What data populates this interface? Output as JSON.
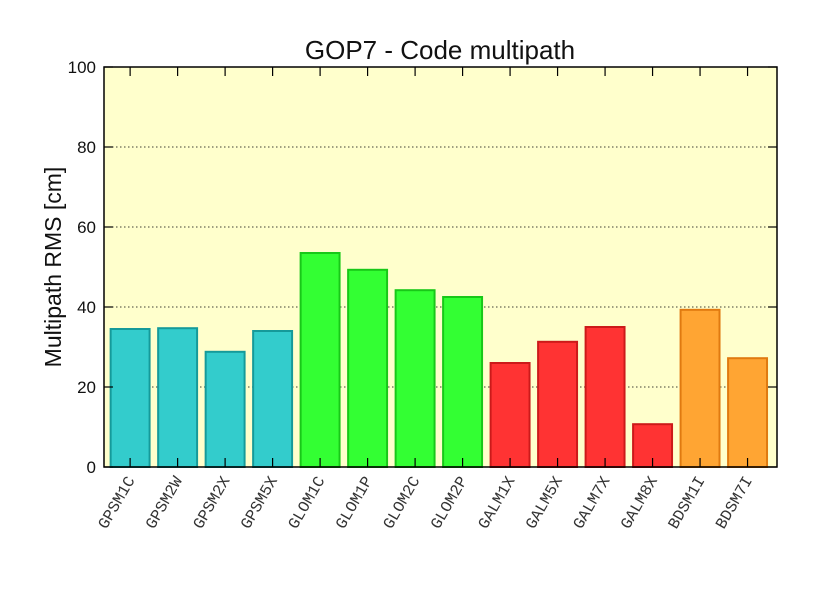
{
  "chart_data": {
    "type": "bar",
    "title": "GOP7 - Code multipath",
    "xlabel": "",
    "ylabel": "Multipath RMS [cm]",
    "ylim": [
      0,
      100
    ],
    "yticks": [
      0,
      20,
      40,
      60,
      80,
      100
    ],
    "grid": "horizontal dotted",
    "background_color": "#ffffcc",
    "categories": [
      "GPSM1C",
      "GPSM2W",
      "GPSM2X",
      "GPSM5X",
      "GLOM1C",
      "GLOM1P",
      "GLOM2C",
      "GLOM2P",
      "GALM1X",
      "GALM5X",
      "GALM7X",
      "GALM8X",
      "BDSM1I",
      "BDSM7I"
    ],
    "values": [
      34.5,
      34.7,
      28.8,
      34.0,
      53.5,
      49.3,
      44.2,
      42.5,
      26.0,
      31.3,
      35.0,
      10.7,
      39.3,
      27.2
    ],
    "colors": [
      {
        "fill": "#33cccc",
        "stroke": "#159a9a"
      },
      {
        "fill": "#33cccc",
        "stroke": "#159a9a"
      },
      {
        "fill": "#33cccc",
        "stroke": "#159a9a"
      },
      {
        "fill": "#33cccc",
        "stroke": "#159a9a"
      },
      {
        "fill": "#33ff33",
        "stroke": "#18c818"
      },
      {
        "fill": "#33ff33",
        "stroke": "#18c818"
      },
      {
        "fill": "#33ff33",
        "stroke": "#18c818"
      },
      {
        "fill": "#33ff33",
        "stroke": "#18c818"
      },
      {
        "fill": "#ff3333",
        "stroke": "#cc1a1a"
      },
      {
        "fill": "#ff3333",
        "stroke": "#cc1a1a"
      },
      {
        "fill": "#ff3333",
        "stroke": "#cc1a1a"
      },
      {
        "fill": "#ff3333",
        "stroke": "#cc1a1a"
      },
      {
        "fill": "#ffa533",
        "stroke": "#e07a10"
      },
      {
        "fill": "#ffa533",
        "stroke": "#e07a10"
      }
    ]
  }
}
